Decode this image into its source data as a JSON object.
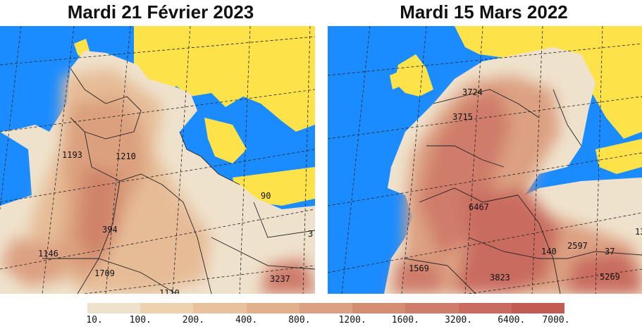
{
  "left_map": {
    "title": "Mardi 21 Février 2023",
    "values": [
      "1193",
      "1210",
      "90",
      "394",
      "1146",
      "1709",
      "3237",
      "3",
      "1110"
    ]
  },
  "right_map": {
    "title": "Mardi 15 Mars 2022",
    "values": [
      "3724",
      "3715",
      "6467",
      "140",
      "2597",
      "37",
      "1569",
      "3823",
      "5269",
      "13"
    ]
  },
  "legend": {
    "ticks": [
      "10.",
      "100.",
      "200.",
      "400.",
      "800.",
      "1200.",
      "1600.",
      "3200.",
      "6400.",
      "7000."
    ],
    "colors": [
      "#efe2cc",
      "#ecd3ae",
      "#e7c29c",
      "#e3b08c",
      "#dca082",
      "#d58d72",
      "#cf7c6a",
      "#c96c5f",
      "#c25b52"
    ]
  },
  "map_colors": {
    "ocean": "#1a8cff",
    "land": "#fde24a",
    "dust_light": "#efe2cc"
  }
}
